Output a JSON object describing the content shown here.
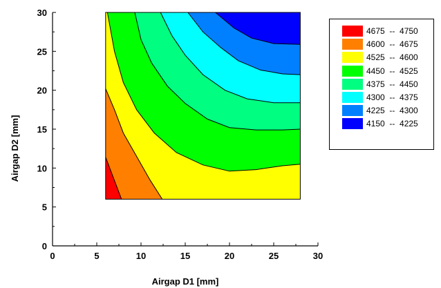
{
  "chart_data": {
    "type": "heatmap",
    "subtype": "filled-contour",
    "title": "",
    "xlabel": "Airgap D1 [mm]",
    "ylabel": "Airgap D2 [mm]",
    "xlim": [
      0,
      30
    ],
    "ylim": [
      0,
      30
    ],
    "xticks": [
      "0",
      "5",
      "10",
      "15",
      "20",
      "25",
      "30"
    ],
    "yticks": [
      "0",
      "5",
      "10",
      "15",
      "20",
      "25",
      "30"
    ],
    "data_extent": {
      "x": [
        6,
        28
      ],
      "y": [
        6,
        30
      ]
    },
    "grid": false,
    "legend_position": "right",
    "levels": [
      {
        "range": "4675  --  4750",
        "color": "#ff0000"
      },
      {
        "range": "4600  --  4675",
        "color": "#ff8000"
      },
      {
        "range": "4525  --  4600",
        "color": "#ffff00"
      },
      {
        "range": "4450  --  4525",
        "color": "#00ff00"
      },
      {
        "range": "4375  --  4450",
        "color": "#00ff80"
      },
      {
        "range": "4300  --  4375",
        "color": "#00ffff"
      },
      {
        "range": "4225  --  4300",
        "color": "#0080ff"
      },
      {
        "range": "4150  --  4225",
        "color": "#0000ff"
      }
    ],
    "contours": [
      {
        "level": 4675,
        "points": [
          [
            6,
            11.4
          ],
          [
            7.8,
            6
          ]
        ]
      },
      {
        "level": 4600,
        "points": [
          [
            6,
            20.2
          ],
          [
            7,
            17.5
          ],
          [
            8,
            14.5
          ],
          [
            9.5,
            11.5
          ],
          [
            11,
            8.5
          ],
          [
            12.4,
            6
          ]
        ]
      },
      {
        "level": 4525,
        "points": [
          [
            6.2,
            30
          ],
          [
            7,
            25
          ],
          [
            8,
            21
          ],
          [
            9.5,
            17.5
          ],
          [
            11.5,
            14.5
          ],
          [
            14,
            12
          ],
          [
            17,
            10.4
          ],
          [
            20,
            9.6
          ],
          [
            23,
            9.8
          ],
          [
            26,
            10.3
          ],
          [
            28,
            10.5
          ]
        ]
      },
      {
        "level": 4450,
        "points": [
          [
            9.3,
            30
          ],
          [
            10,
            26.5
          ],
          [
            11.2,
            23.5
          ],
          [
            13,
            20.5
          ],
          [
            15,
            18.3
          ],
          [
            17.5,
            16.3
          ],
          [
            20,
            15.2
          ],
          [
            23,
            14.9
          ],
          [
            26,
            14.9
          ],
          [
            28,
            15
          ]
        ]
      },
      {
        "level": 4375,
        "points": [
          [
            12.2,
            30
          ],
          [
            13.5,
            27
          ],
          [
            15,
            24.5
          ],
          [
            17,
            22
          ],
          [
            19.5,
            20
          ],
          [
            22,
            18.9
          ],
          [
            25,
            18.4
          ],
          [
            28,
            18.4
          ]
        ]
      },
      {
        "level": 4300,
        "points": [
          [
            15.3,
            30
          ],
          [
            17,
            27.5
          ],
          [
            19,
            25.5
          ],
          [
            21,
            23.8
          ],
          [
            23.5,
            22.6
          ],
          [
            26,
            22.1
          ],
          [
            28,
            22
          ]
        ]
      },
      {
        "level": 4225,
        "points": [
          [
            18.4,
            30
          ],
          [
            20.5,
            28
          ],
          [
            22.5,
            26.7
          ],
          [
            25,
            26
          ],
          [
            28,
            25.9
          ]
        ]
      }
    ]
  }
}
